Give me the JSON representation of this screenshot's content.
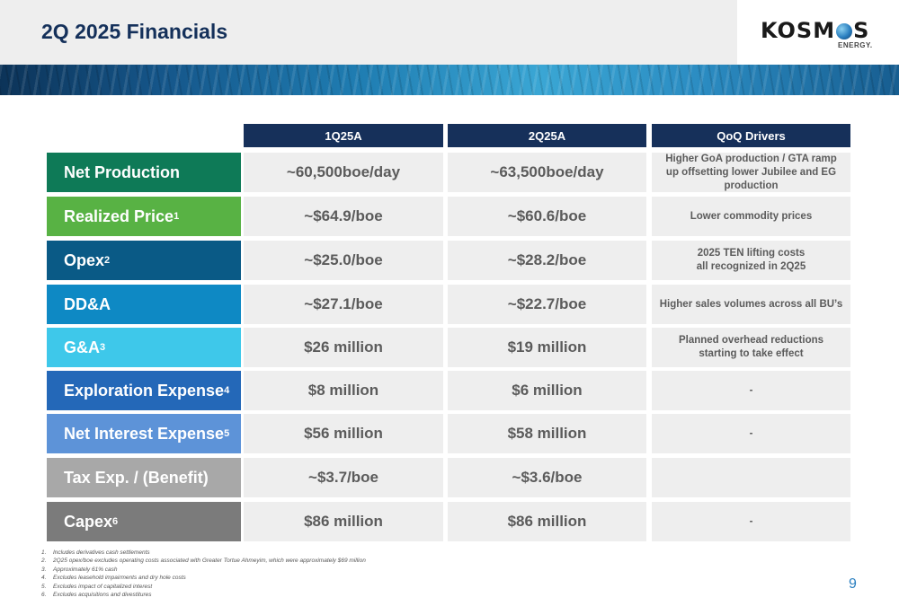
{
  "header": {
    "title": "2Q 2025 Financials",
    "logo": {
      "word_pre": "KOSM",
      "word_post": "S",
      "sub": "ENERGY."
    }
  },
  "table": {
    "columns": [
      "1Q25A",
      "2Q25A",
      "QoQ Drivers"
    ],
    "rows": [
      {
        "label": "Net Production",
        "sup": "",
        "color": "#0e7a57",
        "q1": "~60,500boe/day",
        "q2": "~63,500boe/day",
        "driver": "Higher GoA production / GTA ramp\nup offsetting lower Jubilee and EG\nproduction"
      },
      {
        "label": "Realized Price",
        "sup": "1",
        "color": "#58b244",
        "q1": "~$64.9/boe",
        "q2": "~$60.6/boe",
        "driver": "Lower commodity prices"
      },
      {
        "label": "Opex",
        "sup": "2",
        "color": "#0a5a86",
        "q1": "~$25.0/boe",
        "q2": "~$28.2/boe",
        "driver": "2025 TEN lifting costs\nall recognized in 2Q25"
      },
      {
        "label": "DD&A",
        "sup": "",
        "color": "#0e89c4",
        "q1": "~$27.1/boe",
        "q2": "~$22.7/boe",
        "driver": "Higher sales volumes across all BU’s"
      },
      {
        "label": "G&A",
        "sup": "3",
        "color": "#3ec8ea",
        "q1": "$26 million",
        "q2": "$19 million",
        "driver": "Planned overhead reductions\nstarting to take effect"
      },
      {
        "label": "Exploration Expense",
        "sup": "4",
        "color": "#2468b8",
        "q1": "$8 million",
        "q2": "$6 million",
        "driver": "-"
      },
      {
        "label": "Net Interest Expense",
        "sup": "5",
        "color": "#5d93d8",
        "q1": "$56 million",
        "q2": "$58 million",
        "driver": "-"
      },
      {
        "label": "Tax Exp. / (Benefit)",
        "sup": "",
        "color": "#a8a8a8",
        "q1": "~$3.7/boe",
        "q2": "~$3.6/boe",
        "driver": ""
      },
      {
        "label": "Capex",
        "sup": "6",
        "color": "#7b7b7b",
        "q1": "$86 million",
        "q2": "$86 million",
        "driver": "-"
      }
    ]
  },
  "footnotes": [
    {
      "num": "1.",
      "text": "Includes derivatives cash settlements"
    },
    {
      "num": "2.",
      "text": "2Q25 opex/boe excludes operating costs associated with Greater Tortue Ahmeyim, which were approximately $69 million"
    },
    {
      "num": "3.",
      "text": "Approximately 61% cash"
    },
    {
      "num": "4.",
      "text": "Excludes leasehold impairments and dry hole costs"
    },
    {
      "num": "5.",
      "text": "Excludes impact of capitalized interest"
    },
    {
      "num": "6.",
      "text": "Excludes acquisitions and divestitures"
    }
  ],
  "page_number": "9"
}
